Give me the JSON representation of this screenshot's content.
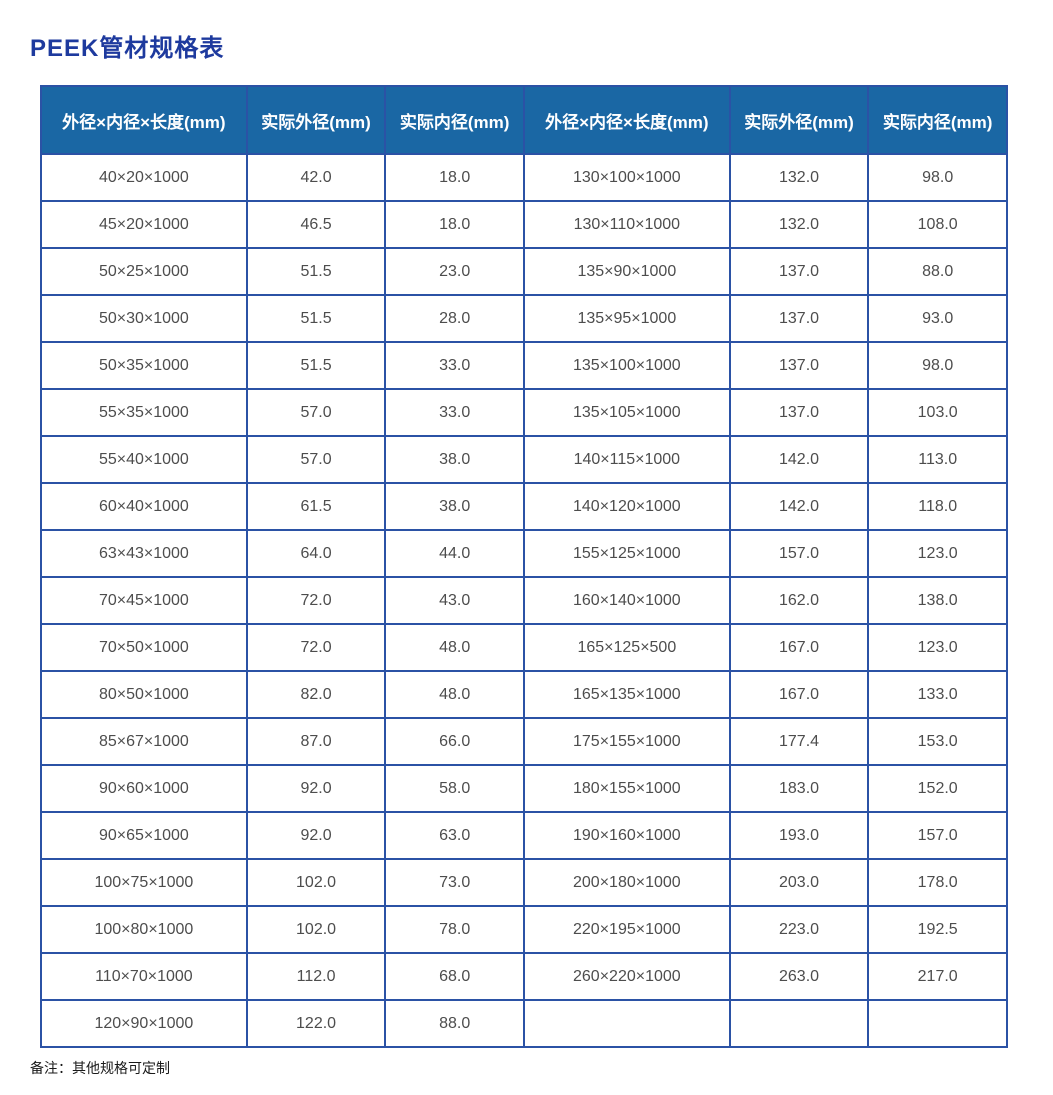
{
  "page": {
    "title": "PEEK管材规格表",
    "note": "备注：其他规格可定制"
  },
  "colors": {
    "title": "#1e3a9e",
    "header_bg": "#1a67a4",
    "header_text": "#ffffff",
    "border": "#2b52a5",
    "cell_text": "#4d4d4d"
  },
  "table": {
    "headers": [
      "外径×内径×长度(mm)",
      "实际外径(mm)",
      "实际内径(mm)",
      "外径×内径×长度(mm)",
      "实际外径(mm)",
      "实际内径(mm)"
    ],
    "rows": [
      [
        "40×20×1000",
        "42.0",
        "18.0",
        "130×100×1000",
        "132.0",
        "98.0"
      ],
      [
        "45×20×1000",
        "46.5",
        "18.0",
        "130×110×1000",
        "132.0",
        "108.0"
      ],
      [
        "50×25×1000",
        "51.5",
        "23.0",
        "135×90×1000",
        "137.0",
        "88.0"
      ],
      [
        "50×30×1000",
        "51.5",
        "28.0",
        "135×95×1000",
        "137.0",
        "93.0"
      ],
      [
        "50×35×1000",
        "51.5",
        "33.0",
        "135×100×1000",
        "137.0",
        "98.0"
      ],
      [
        "55×35×1000",
        "57.0",
        "33.0",
        "135×105×1000",
        "137.0",
        "103.0"
      ],
      [
        "55×40×1000",
        "57.0",
        "38.0",
        "140×115×1000",
        "142.0",
        "113.0"
      ],
      [
        "60×40×1000",
        "61.5",
        "38.0",
        "140×120×1000",
        "142.0",
        "118.0"
      ],
      [
        "63×43×1000",
        "64.0",
        "44.0",
        "155×125×1000",
        "157.0",
        "123.0"
      ],
      [
        "70×45×1000",
        "72.0",
        "43.0",
        "160×140×1000",
        "162.0",
        "138.0"
      ],
      [
        "70×50×1000",
        "72.0",
        "48.0",
        "165×125×500",
        "167.0",
        "123.0"
      ],
      [
        "80×50×1000",
        "82.0",
        "48.0",
        "165×135×1000",
        "167.0",
        "133.0"
      ],
      [
        "85×67×1000",
        "87.0",
        "66.0",
        "175×155×1000",
        "177.4",
        "153.0"
      ],
      [
        "90×60×1000",
        "92.0",
        "58.0",
        "180×155×1000",
        "183.0",
        "152.0"
      ],
      [
        "90×65×1000",
        "92.0",
        "63.0",
        "190×160×1000",
        "193.0",
        "157.0"
      ],
      [
        "100×75×1000",
        "102.0",
        "73.0",
        "200×180×1000",
        "203.0",
        "178.0"
      ],
      [
        "100×80×1000",
        "102.0",
        "78.0",
        "220×195×1000",
        "223.0",
        "192.5"
      ],
      [
        "110×70×1000",
        "112.0",
        "68.0",
        "260×220×1000",
        "263.0",
        "217.0"
      ],
      [
        "120×90×1000",
        "122.0",
        "88.0",
        "",
        "",
        ""
      ]
    ]
  }
}
